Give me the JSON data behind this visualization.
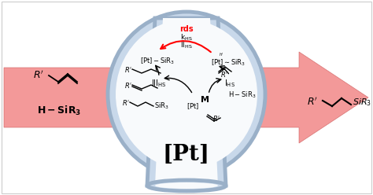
{
  "bg_color": "#ffffff",
  "flask_fill": "#c8d8ea",
  "flask_edge": "#9ab0c8",
  "flask_inner": "#f8fafc",
  "arrow_fill": "#f08080",
  "arrow_edge": "#d06060",
  "pt_label": "[Pt]",
  "rds_label": "rds",
  "figw": 4.74,
  "figh": 2.48,
  "dpi": 100
}
